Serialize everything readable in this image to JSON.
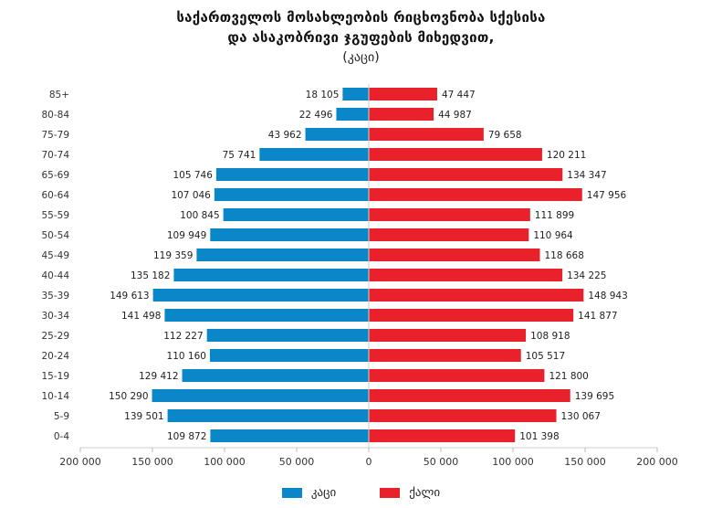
{
  "chart_data": {
    "type": "bar",
    "orientation": "horizontal-diverging",
    "title_lines": [
      "საქართველოს მოსახლეობის რიცხოვნობა სქესისა",
      "და ასაკობრივი ჯგუფების მიხედვით,"
    ],
    "subtitle": "(კაცი)",
    "categories": [
      "85+",
      "80-84",
      "75-79",
      "70-74",
      "65-69",
      "60-64",
      "55-59",
      "50-54",
      "45-49",
      "40-44",
      "35-39",
      "30-34",
      "25-29",
      "20-24",
      "15-19",
      "10-14",
      "5-9",
      "0-4"
    ],
    "series": [
      {
        "name": "კაცი",
        "color": "#0a87c9",
        "values": [
          18105,
          22496,
          43962,
          75741,
          105746,
          107046,
          100845,
          109949,
          119359,
          135182,
          149613,
          141498,
          112227,
          110160,
          129412,
          150290,
          139501,
          109872
        ],
        "labels": [
          "18 105",
          "22 496",
          "43 962",
          "75 741",
          "105 746",
          "107 046",
          "100 845",
          "109 949",
          "119 359",
          "135 182",
          "149 613",
          "141 498",
          "112 227",
          "110 160",
          "129 412",
          "150 290",
          "139 501",
          "109 872"
        ]
      },
      {
        "name": "ქალი",
        "color": "#e8212b",
        "values": [
          47447,
          44987,
          79658,
          120211,
          134347,
          147956,
          111899,
          110964,
          118668,
          134225,
          148943,
          141877,
          108918,
          105517,
          121800,
          139695,
          130067,
          101398
        ],
        "labels": [
          "47 447",
          "44 987",
          "79 658",
          "120 211",
          "134 347",
          "147 956",
          "111 899",
          "110 964",
          "118 668",
          "134 225",
          "148 943",
          "141 877",
          "108 918",
          "105 517",
          "121 800",
          "139 695",
          "130 067",
          "101 398"
        ]
      }
    ],
    "xlim": [
      -200000,
      200000
    ],
    "x_ticks": [
      "200 000",
      "150 000",
      "100 000",
      "50 000",
      "0",
      "50 000",
      "100 000",
      "150 000",
      "200 000"
    ],
    "grid": false,
    "legend_position": "bottom-center"
  }
}
